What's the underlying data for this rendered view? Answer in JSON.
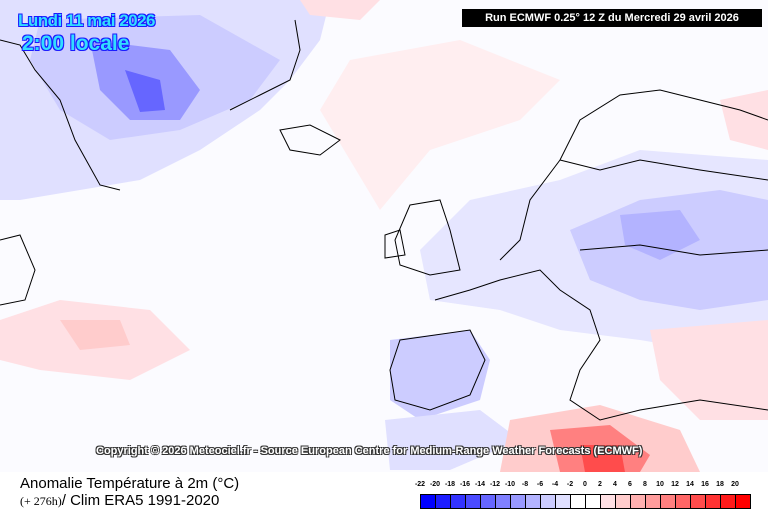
{
  "header": {
    "date": "Lundi 11 mai 2026",
    "time": "2:00 locale",
    "run": "Run ECMWF 0.25° 12 Z du Mercredi 29 avril 2026"
  },
  "copyright": "Copyright © 2026 Meteociel.fr - Source European Centre for Medium-Range Weather Forecasts (ECMWF)",
  "footer": {
    "title": "Anomalie Température à 2m (°C)",
    "lead": "(+ 276h)",
    "clim": "/ Clim ERA5 1991-2020"
  },
  "legend": {
    "labels": [
      "-22",
      "-20",
      "-18",
      "-16",
      "-14",
      "-12",
      "-10",
      "-8",
      "-6",
      "-4",
      "-2",
      "0",
      "2",
      "4",
      "6",
      "8",
      "10",
      "12",
      "14",
      "16",
      "18",
      "20"
    ],
    "colors": [
      "#0000ff",
      "#1d1dff",
      "#3333ff",
      "#4b4bff",
      "#6666ff",
      "#8080ff",
      "#9999ff",
      "#b3b3ff",
      "#ccccff",
      "#e0e0ff",
      "#ffffff",
      "#ffffff",
      "#ffe0e4",
      "#ffcccc",
      "#ffb0b0",
      "#ff9c9c",
      "#ff8080",
      "#ff6666",
      "#ff4c4c",
      "#ff3333",
      "#ff1a1a",
      "#ff0000"
    ]
  }
}
